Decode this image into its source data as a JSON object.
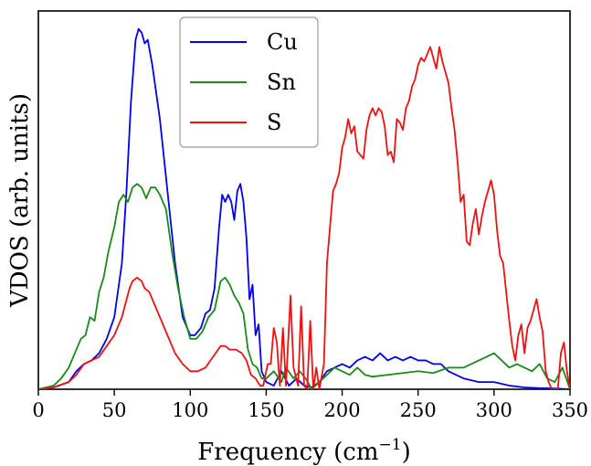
{
  "chart_data": {
    "type": "line",
    "xlabel": "Frequency (cm",
    "xlabel_sup": "−1",
    "xlabel_close": ")",
    "ylabel": "VDOS (arb. units)",
    "xlim": [
      0,
      350
    ],
    "ylim": [
      0,
      1.05
    ],
    "xticks": [
      0,
      50,
      100,
      150,
      200,
      250,
      300,
      350
    ],
    "yticks_visible": false,
    "grid": false,
    "legend_position": "top-left-center",
    "series": [
      {
        "name": "Cu",
        "color": "#0000ee",
        "points": [
          [
            0,
            0
          ],
          [
            10,
            0.005
          ],
          [
            20,
            0.02
          ],
          [
            25,
            0.05
          ],
          [
            30,
            0.07
          ],
          [
            35,
            0.08
          ],
          [
            40,
            0.1
          ],
          [
            45,
            0.14
          ],
          [
            50,
            0.2
          ],
          [
            55,
            0.35
          ],
          [
            58,
            0.55
          ],
          [
            61,
            0.8
          ],
          [
            64,
            0.97
          ],
          [
            66,
            1.0
          ],
          [
            68,
            0.99
          ],
          [
            70,
            0.96
          ],
          [
            72,
            0.97
          ],
          [
            75,
            0.9
          ],
          [
            80,
            0.75
          ],
          [
            85,
            0.55
          ],
          [
            90,
            0.35
          ],
          [
            95,
            0.2
          ],
          [
            100,
            0.15
          ],
          [
            103,
            0.15
          ],
          [
            107,
            0.17
          ],
          [
            110,
            0.21
          ],
          [
            113,
            0.22
          ],
          [
            116,
            0.28
          ],
          [
            119,
            0.45
          ],
          [
            121,
            0.54
          ],
          [
            123,
            0.52
          ],
          [
            125,
            0.54
          ],
          [
            127,
            0.52
          ],
          [
            129,
            0.47
          ],
          [
            131,
            0.55
          ],
          [
            133,
            0.57
          ],
          [
            135,
            0.52
          ],
          [
            137,
            0.42
          ],
          [
            139,
            0.25
          ],
          [
            141,
            0.29
          ],
          [
            143,
            0.15
          ],
          [
            145,
            0.18
          ],
          [
            147,
            0.05
          ],
          [
            150,
            0.02
          ],
          [
            155,
            0.01
          ],
          [
            160,
            0.05
          ],
          [
            165,
            0.01
          ],
          [
            170,
            0.03
          ],
          [
            175,
            0.01
          ],
          [
            180,
            0.005
          ],
          [
            185,
            0.02
          ],
          [
            190,
            0.05
          ],
          [
            195,
            0.06
          ],
          [
            200,
            0.07
          ],
          [
            205,
            0.06
          ],
          [
            210,
            0.08
          ],
          [
            215,
            0.09
          ],
          [
            220,
            0.08
          ],
          [
            225,
            0.1
          ],
          [
            230,
            0.08
          ],
          [
            235,
            0.09
          ],
          [
            240,
            0.08
          ],
          [
            245,
            0.09
          ],
          [
            250,
            0.08
          ],
          [
            255,
            0.08
          ],
          [
            260,
            0.07
          ],
          [
            265,
            0.07
          ],
          [
            270,
            0.05
          ],
          [
            280,
            0.03
          ],
          [
            290,
            0.02
          ],
          [
            300,
            0.02
          ],
          [
            310,
            0.01
          ],
          [
            320,
            0.005
          ],
          [
            330,
            0.003
          ],
          [
            340,
            0.002
          ],
          [
            350,
            0
          ]
        ]
      },
      {
        "name": "Sn",
        "color": "#1a8a1a",
        "points": [
          [
            0,
            0
          ],
          [
            10,
            0.01
          ],
          [
            15,
            0.03
          ],
          [
            20,
            0.06
          ],
          [
            25,
            0.11
          ],
          [
            28,
            0.14
          ],
          [
            31,
            0.15
          ],
          [
            34,
            0.2
          ],
          [
            37,
            0.19
          ],
          [
            40,
            0.27
          ],
          [
            43,
            0.31
          ],
          [
            46,
            0.38
          ],
          [
            50,
            0.45
          ],
          [
            53,
            0.52
          ],
          [
            56,
            0.54
          ],
          [
            59,
            0.52
          ],
          [
            62,
            0.56
          ],
          [
            65,
            0.57
          ],
          [
            68,
            0.56
          ],
          [
            71,
            0.53
          ],
          [
            74,
            0.56
          ],
          [
            77,
            0.56
          ],
          [
            80,
            0.54
          ],
          [
            84,
            0.5
          ],
          [
            88,
            0.38
          ],
          [
            92,
            0.28
          ],
          [
            96,
            0.2
          ],
          [
            100,
            0.14
          ],
          [
            104,
            0.14
          ],
          [
            108,
            0.16
          ],
          [
            112,
            0.2
          ],
          [
            116,
            0.22
          ],
          [
            120,
            0.3
          ],
          [
            123,
            0.31
          ],
          [
            126,
            0.29
          ],
          [
            129,
            0.26
          ],
          [
            132,
            0.24
          ],
          [
            135,
            0.21
          ],
          [
            138,
            0.11
          ],
          [
            141,
            0.07
          ],
          [
            144,
            0.06
          ],
          [
            147,
            0.03
          ],
          [
            150,
            0.03
          ],
          [
            155,
            0.05
          ],
          [
            160,
            0.02
          ],
          [
            163,
            0.06
          ],
          [
            168,
            0.03
          ],
          [
            172,
            0.05
          ],
          [
            176,
            0.03
          ],
          [
            180,
            0.0
          ],
          [
            185,
            0.02
          ],
          [
            190,
            0.04
          ],
          [
            195,
            0.06
          ],
          [
            200,
            0.05
          ],
          [
            205,
            0.04
          ],
          [
            210,
            0.06
          ],
          [
            215,
            0.04
          ],
          [
            220,
            0.035
          ],
          [
            230,
            0.04
          ],
          [
            240,
            0.045
          ],
          [
            250,
            0.05
          ],
          [
            260,
            0.045
          ],
          [
            270,
            0.06
          ],
          [
            280,
            0.06
          ],
          [
            290,
            0.08
          ],
          [
            295,
            0.09
          ],
          [
            300,
            0.1
          ],
          [
            305,
            0.08
          ],
          [
            310,
            0.06
          ],
          [
            315,
            0.07
          ],
          [
            320,
            0.06
          ],
          [
            325,
            0.05
          ],
          [
            330,
            0.07
          ],
          [
            335,
            0.03
          ],
          [
            340,
            0.02
          ],
          [
            345,
            0.06
          ],
          [
            350,
            0.0
          ]
        ]
      },
      {
        "name": "S",
        "color": "#ee1111",
        "points": [
          [
            0,
            0
          ],
          [
            10,
            0.005
          ],
          [
            20,
            0.02
          ],
          [
            25,
            0.04
          ],
          [
            30,
            0.07
          ],
          [
            35,
            0.08
          ],
          [
            40,
            0.09
          ],
          [
            45,
            0.12
          ],
          [
            50,
            0.15
          ],
          [
            55,
            0.2
          ],
          [
            60,
            0.28
          ],
          [
            62,
            0.3
          ],
          [
            65,
            0.31
          ],
          [
            68,
            0.3
          ],
          [
            70,
            0.28
          ],
          [
            73,
            0.27
          ],
          [
            76,
            0.24
          ],
          [
            80,
            0.2
          ],
          [
            85,
            0.15
          ],
          [
            90,
            0.1
          ],
          [
            95,
            0.07
          ],
          [
            100,
            0.05
          ],
          [
            105,
            0.05
          ],
          [
            110,
            0.06
          ],
          [
            115,
            0.09
          ],
          [
            120,
            0.12
          ],
          [
            123,
            0.12
          ],
          [
            126,
            0.11
          ],
          [
            130,
            0.11
          ],
          [
            134,
            0.1
          ],
          [
            137,
            0.08
          ],
          [
            140,
            0.04
          ],
          [
            143,
            0.03
          ],
          [
            146,
            0.01
          ],
          [
            148,
            0.01
          ],
          [
            151,
            0.07
          ],
          [
            153,
            0.07
          ],
          [
            155,
            0.17
          ],
          [
            157,
            0.13
          ],
          [
            159,
            0.01
          ],
          [
            161,
            0.17
          ],
          [
            163,
            0.01
          ],
          [
            166,
            0.26
          ],
          [
            168,
            0.06
          ],
          [
            171,
            0.01
          ],
          [
            173,
            0.23
          ],
          [
            175,
            0.01
          ],
          [
            177,
            0.0
          ],
          [
            179,
            0.19
          ],
          [
            181,
            0.0
          ],
          [
            183,
            0.06
          ],
          [
            185,
            0.0
          ],
          [
            188,
            0.07
          ],
          [
            190,
            0.35
          ],
          [
            192,
            0.45
          ],
          [
            194,
            0.55
          ],
          [
            196,
            0.57
          ],
          [
            198,
            0.6
          ],
          [
            200,
            0.67
          ],
          [
            202,
            0.7
          ],
          [
            204,
            0.75
          ],
          [
            206,
            0.71
          ],
          [
            208,
            0.73
          ],
          [
            210,
            0.66
          ],
          [
            212,
            0.65
          ],
          [
            214,
            0.64
          ],
          [
            216,
            0.72
          ],
          [
            218,
            0.76
          ],
          [
            220,
            0.78
          ],
          [
            222,
            0.76
          ],
          [
            224,
            0.78
          ],
          [
            226,
            0.77
          ],
          [
            228,
            0.73
          ],
          [
            230,
            0.65
          ],
          [
            232,
            0.66
          ],
          [
            234,
            0.63
          ],
          [
            236,
            0.75
          ],
          [
            238,
            0.74
          ],
          [
            240,
            0.72
          ],
          [
            242,
            0.78
          ],
          [
            244,
            0.8
          ],
          [
            246,
            0.84
          ],
          [
            248,
            0.86
          ],
          [
            250,
            0.9
          ],
          [
            252,
            0.92
          ],
          [
            254,
            0.91
          ],
          [
            256,
            0.93
          ],
          [
            258,
            0.95
          ],
          [
            260,
            0.92
          ],
          [
            262,
            0.89
          ],
          [
            264,
            0.95
          ],
          [
            266,
            0.91
          ],
          [
            268,
            0.88
          ],
          [
            270,
            0.85
          ],
          [
            272,
            0.78
          ],
          [
            274,
            0.72
          ],
          [
            276,
            0.63
          ],
          [
            278,
            0.52
          ],
          [
            280,
            0.54
          ],
          [
            282,
            0.41
          ],
          [
            284,
            0.4
          ],
          [
            286,
            0.46
          ],
          [
            288,
            0.5
          ],
          [
            290,
            0.43
          ],
          [
            292,
            0.48
          ],
          [
            294,
            0.52
          ],
          [
            296,
            0.55
          ],
          [
            298,
            0.58
          ],
          [
            300,
            0.54
          ],
          [
            302,
            0.44
          ],
          [
            304,
            0.37
          ],
          [
            306,
            0.35
          ],
          [
            308,
            0.27
          ],
          [
            310,
            0.19
          ],
          [
            312,
            0.12
          ],
          [
            314,
            0.08
          ],
          [
            316,
            0.15
          ],
          [
            318,
            0.18
          ],
          [
            320,
            0.1
          ],
          [
            322,
            0.17
          ],
          [
            324,
            0.19
          ],
          [
            326,
            0.22
          ],
          [
            328,
            0.25
          ],
          [
            330,
            0.2
          ],
          [
            332,
            0.16
          ],
          [
            334,
            0.05
          ],
          [
            336,
            0.02
          ],
          [
            338,
            0.0
          ],
          [
            340,
            0.0
          ],
          [
            342,
            0.0
          ],
          [
            344,
            0.1
          ],
          [
            346,
            0.13
          ],
          [
            348,
            0.05
          ],
          [
            350,
            0.0
          ]
        ]
      }
    ]
  }
}
